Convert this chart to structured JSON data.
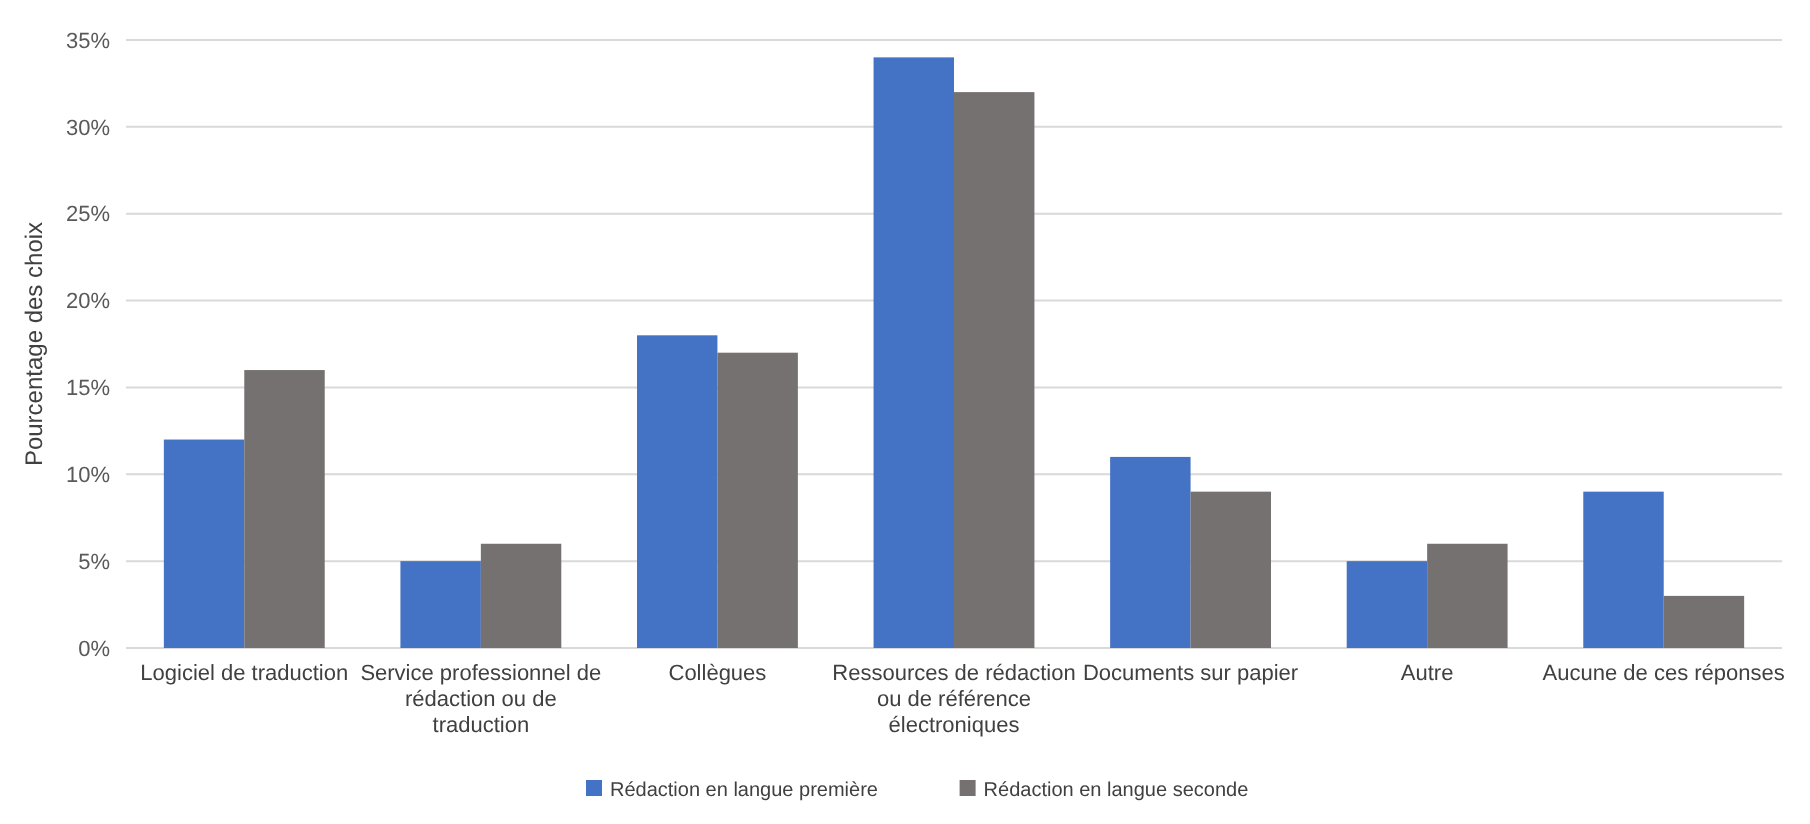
{
  "chart_data": {
    "type": "bar",
    "ylabel": "Pourcentage des choix",
    "categories": [
      "Logiciel de traduction",
      "Service professionnel de rédaction ou de traduction",
      "Collègues",
      "Ressources de rédaction ou de référence électroniques",
      "Documents sur papier",
      "Autre",
      "Aucune de ces réponses"
    ],
    "series": [
      {
        "name": "Rédaction en langue première",
        "color": "#4472c4",
        "values": [
          12,
          5,
          18,
          34,
          11,
          5,
          9
        ]
      },
      {
        "name": "Rédaction en langue seconde",
        "color": "#767171",
        "values": [
          16,
          6,
          17,
          32,
          9,
          6,
          3
        ]
      }
    ],
    "ylim": [
      0,
      35
    ],
    "yticks": [
      {
        "value": 0,
        "label": "0%"
      },
      {
        "value": 5,
        "label": "5%"
      },
      {
        "value": 10,
        "label": "10%"
      },
      {
        "value": 15,
        "label": "15%"
      },
      {
        "value": 20,
        "label": "20%"
      },
      {
        "value": 25,
        "label": "25%"
      },
      {
        "value": 30,
        "label": "30%"
      },
      {
        "value": 35,
        "label": "35%"
      }
    ],
    "grid": "y",
    "legend": "bottom"
  }
}
